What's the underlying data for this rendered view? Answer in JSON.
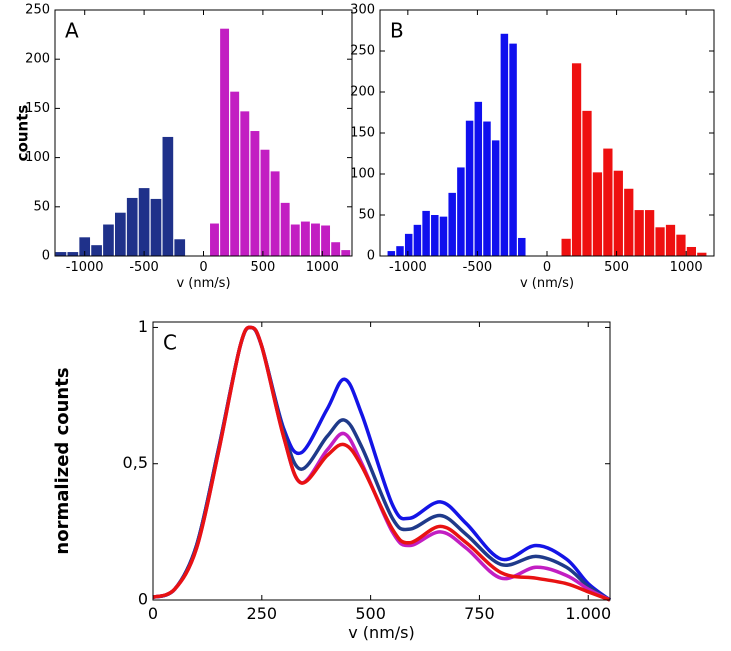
{
  "chart_data": [
    {
      "type": "histogram",
      "label": "A",
      "xlabel": "v (nm/s)",
      "ylabel": "counts",
      "xlim": [
        -1250,
        1250
      ],
      "xticks": [
        -1000,
        -500,
        0,
        500,
        1000
      ],
      "ylim": [
        0,
        250
      ],
      "yticks": [
        0,
        50,
        100,
        150,
        200,
        250
      ],
      "series": [
        {
          "color": "#1f318a",
          "bins": [
            -1250,
            -1150,
            -1050,
            -950,
            -850,
            -750,
            -650,
            -550,
            -450,
            -350,
            -250,
            -150
          ],
          "counts": [
            4,
            4,
            19,
            11,
            32,
            44,
            59,
            69,
            58,
            121,
            17
          ]
        },
        {
          "color": "#c21ec2",
          "bins": [
            50,
            135,
            220,
            305,
            390,
            475,
            560,
            645,
            730,
            815,
            900,
            985,
            1070,
            1155,
            1240
          ],
          "counts": [
            33,
            231,
            167,
            147,
            127,
            108,
            86,
            54,
            32,
            35,
            33,
            31,
            14,
            6
          ]
        }
      ]
    },
    {
      "type": "histogram",
      "label": "B",
      "xlabel": "v (nm/s)",
      "xlim": [
        -1200,
        1200
      ],
      "xticks": [
        -1000,
        -500,
        0,
        500,
        1000
      ],
      "ylim": [
        0,
        300
      ],
      "yticks": [
        0,
        50,
        100,
        150,
        200,
        250,
        300
      ],
      "series": [
        {
          "color": "#1010ee",
          "bins": [
            -1150,
            -1087.5,
            -1025,
            -962.5,
            -900,
            -837.5,
            -775,
            -712.5,
            -650,
            -587.5,
            -525,
            -462.5,
            -400,
            -337.5,
            -275,
            -212.5,
            -150
          ],
          "counts": [
            6,
            12,
            27,
            38,
            55,
            50,
            48,
            77,
            108,
            165,
            188,
            164,
            141,
            271,
            259,
            22
          ]
        },
        {
          "color": "#ee1010",
          "bins": [
            100,
            175,
            250,
            325,
            400,
            475,
            550,
            625,
            700,
            775,
            850,
            925,
            1000,
            1075,
            1150
          ],
          "counts": [
            21,
            235,
            177,
            102,
            131,
            104,
            82,
            56,
            56,
            35,
            38,
            26,
            11,
            4
          ]
        }
      ]
    },
    {
      "type": "line",
      "label": "C",
      "xlabel": "v (nm/s)",
      "ylabel": "normalized counts",
      "xlim": [
        0,
        1050
      ],
      "xticks": [
        0,
        250,
        500,
        750,
        {
          "value": 1000,
          "label": "1.000"
        }
      ],
      "ylim": [
        0,
        1.02
      ],
      "yticks": [
        0,
        {
          "value": 0.5,
          "label": "0,5"
        },
        1
      ],
      "x": [
        0,
        50,
        100,
        150,
        200,
        225,
        250,
        300,
        340,
        400,
        440,
        480,
        550,
        590,
        660,
        720,
        800,
        880,
        950,
        1000,
        1050
      ],
      "series": [
        {
          "color": "#1414e6",
          "values": [
            0.01,
            0.04,
            0.2,
            0.55,
            0.93,
            1.0,
            0.93,
            0.63,
            0.54,
            0.7,
            0.81,
            0.68,
            0.35,
            0.3,
            0.36,
            0.28,
            0.15,
            0.2,
            0.15,
            0.06,
            0.0
          ]
        },
        {
          "color": "#1f3a8a",
          "values": [
            0.01,
            0.04,
            0.2,
            0.55,
            0.93,
            1.0,
            0.93,
            0.62,
            0.48,
            0.6,
            0.66,
            0.56,
            0.3,
            0.26,
            0.31,
            0.24,
            0.13,
            0.16,
            0.12,
            0.05,
            0.0
          ]
        },
        {
          "color": "#c21ec2",
          "values": [
            0.01,
            0.04,
            0.19,
            0.54,
            0.93,
            1.0,
            0.93,
            0.6,
            0.43,
            0.55,
            0.61,
            0.5,
            0.25,
            0.2,
            0.25,
            0.19,
            0.08,
            0.12,
            0.09,
            0.04,
            0.0
          ]
        },
        {
          "color": "#e81212",
          "values": [
            0.01,
            0.04,
            0.19,
            0.54,
            0.93,
            1.0,
            0.93,
            0.6,
            0.43,
            0.53,
            0.57,
            0.49,
            0.26,
            0.21,
            0.27,
            0.21,
            0.1,
            0.08,
            0.06,
            0.03,
            0.0
          ]
        }
      ]
    }
  ]
}
